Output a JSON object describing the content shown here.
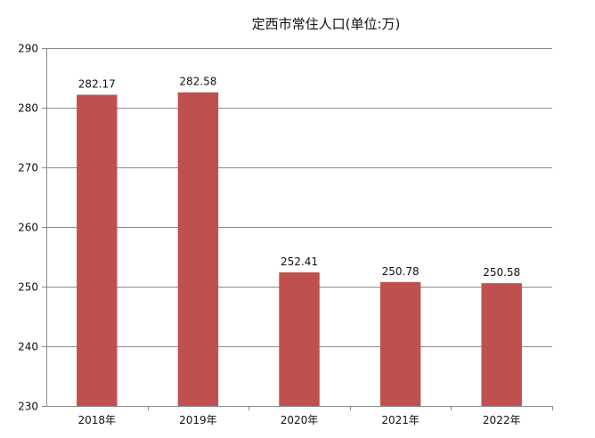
{
  "chart_data": {
    "type": "bar",
    "title": "定西市常住人口(单位:万)",
    "xlabel": "",
    "ylabel": "",
    "categories": [
      "2018年",
      "2019年",
      "2020年",
      "2021年",
      "2022年"
    ],
    "values": [
      282.17,
      282.58,
      252.41,
      250.78,
      250.58
    ],
    "data_labels": [
      "282.17",
      "282.58",
      "252.41",
      "250.78",
      "250.58"
    ],
    "ylim": [
      230,
      290
    ],
    "yticks": [
      230,
      240,
      250,
      260,
      270,
      280,
      290
    ],
    "ytick_labels": [
      "230",
      "240",
      "250",
      "260",
      "270",
      "280",
      "290"
    ],
    "grid": true,
    "legend": "none",
    "bar_color": "#C0504D",
    "grid_color": "#8C8C8C",
    "axis_color": "#8C8C8C"
  }
}
